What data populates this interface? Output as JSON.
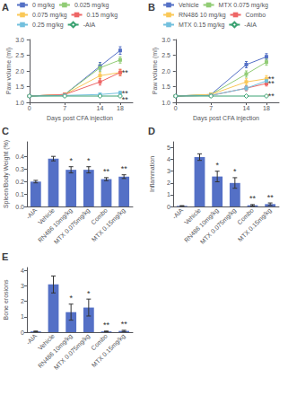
{
  "chart_data": [
    {
      "type": "line",
      "title": "A",
      "xlabel": "Days post CFA injection",
      "ylabel": "Paw volume (ml)",
      "x": [
        0,
        7,
        14,
        18
      ],
      "series": [
        {
          "name": "0 mg/kg",
          "marker": "square",
          "values": [
            1.2,
            1.25,
            2.15,
            2.65
          ],
          "errors": [
            0.03,
            0.04,
            0.12,
            0.12
          ]
        },
        {
          "name": "0.025 mg/kg",
          "marker": "square",
          "values": [
            1.2,
            1.25,
            2.1,
            2.35
          ],
          "errors": [
            0.03,
            0.04,
            0.12,
            0.1
          ]
        },
        {
          "name": "0.075 mg/kg",
          "marker": "square",
          "values": [
            1.2,
            1.25,
            1.85,
            1.95
          ],
          "errors": [
            0.03,
            0.04,
            0.1,
            0.1
          ]
        },
        {
          "name": "0.15 mg/kg",
          "marker": "square",
          "values": [
            1.2,
            1.25,
            1.65,
            1.95
          ],
          "errors": [
            0.03,
            0.04,
            0.1,
            0.1
          ]
        },
        {
          "name": "0.25 mg/kg",
          "marker": "square",
          "values": [
            1.2,
            1.22,
            1.25,
            1.3
          ],
          "errors": [
            0.02,
            0.03,
            0.04,
            0.05
          ]
        },
        {
          "name": "-AIA",
          "marker": "diamond",
          "values": [
            1.2,
            1.2,
            1.2,
            1.2
          ],
          "errors": [
            0.02,
            0.02,
            0.02,
            0.02
          ]
        }
      ],
      "xlim": [
        -0.5,
        20.5
      ],
      "xticks": [
        0,
        7,
        14,
        18
      ],
      "ylim": [
        1.0,
        3.0
      ],
      "yticks": [
        {
          "value": 1.0,
          "label": "1.0"
        },
        1.5,
        {
          "value": 2.0,
          "label": "2.0"
        },
        2.5,
        {
          "value": 3.0,
          "label": "3.0"
        }
      ],
      "annotations": [
        {
          "text": "**",
          "x": 18.3,
          "y": 1.95
        },
        {
          "text": "**",
          "x": 18.3,
          "y": 1.3
        },
        {
          "text": "**",
          "x": 18.3,
          "y": 1.1
        }
      ],
      "legend": "upper left",
      "grid": false
    },
    {
      "type": "line",
      "title": "B",
      "xlabel": "Days post CFA injection",
      "ylabel": "Paw volume (ml)",
      "x": [
        0,
        7,
        14,
        18
      ],
      "series": [
        {
          "name": "Vehicle",
          "marker": "square",
          "values": [
            1.2,
            1.25,
            2.2,
            2.45
          ],
          "errors": [
            0.03,
            0.04,
            0.1,
            0.1
          ]
        },
        {
          "name": "MTX 0.075 mg/kg",
          "marker": "square",
          "values": [
            1.2,
            1.25,
            1.9,
            2.28
          ],
          "errors": [
            0.03,
            0.04,
            0.1,
            0.1
          ]
        },
        {
          "name": "RN486 10 mg/kg",
          "marker": "square",
          "values": [
            1.2,
            1.25,
            1.65,
            1.75
          ],
          "errors": [
            0.03,
            0.04,
            0.1,
            0.1
          ]
        },
        {
          "name": "Combo",
          "marker": "square",
          "values": [
            1.2,
            1.22,
            1.45,
            1.6
          ],
          "errors": [
            0.03,
            0.04,
            0.08,
            0.08
          ]
        },
        {
          "name": "MTX 0.15 mg/kg",
          "marker": "square",
          "values": [
            1.2,
            1.22,
            1.45,
            1.68
          ],
          "errors": [
            0.03,
            0.03,
            0.07,
            0.08
          ]
        },
        {
          "name": "-AIA",
          "marker": "diamond",
          "values": [
            1.2,
            1.2,
            1.2,
            1.2
          ],
          "errors": [
            0.02,
            0.02,
            0.02,
            0.02
          ]
        }
      ],
      "xlim": [
        -0.5,
        20.5
      ],
      "xticks": [
        0,
        7,
        14,
        18
      ],
      "ylim": [
        1.0,
        3.0
      ],
      "yticks": [
        {
          "value": 1.0,
          "label": "1.0"
        },
        1.5,
        {
          "value": 2.0,
          "label": "2.0"
        },
        2.5,
        {
          "value": 3.0,
          "label": "3.0"
        }
      ],
      "annotations": [
        {
          "text": "**",
          "x": 18.3,
          "y": 1.75
        },
        {
          "text": "**",
          "x": 18.3,
          "y": 1.6
        },
        {
          "text": "**",
          "x": 18.3,
          "y": 1.2
        }
      ],
      "legend": "upper left",
      "grid": false
    },
    {
      "type": "bar",
      "title": "C",
      "ylabel": "Spleen/Body Weight (%)",
      "categories": [
        "-AIA",
        "Vehicle",
        "RN486 10mg/kg",
        "MTX 0.075mg/kg",
        "Combo",
        "MTX 0.15mg/kg"
      ],
      "values": [
        0.2,
        0.385,
        0.295,
        0.295,
        0.22,
        0.24
      ],
      "errors": [
        0.01,
        0.018,
        0.025,
        0.025,
        0.012,
        0.015
      ],
      "ylim": [
        0,
        0.52
      ],
      "yticks": [
        {
          "value": 0.0,
          "label": "0.0"
        },
        0.1,
        0.2,
        0.3,
        0.4
      ],
      "annotations": [
        {
          "category": "RN486 10mg/kg",
          "text": "*"
        },
        {
          "category": "MTX 0.075mg/kg",
          "text": "*"
        },
        {
          "category": "Combo",
          "text": "**"
        },
        {
          "category": "MTX 0.15mg/kg",
          "text": "**"
        }
      ],
      "grid": false
    },
    {
      "type": "bar",
      "title": "D",
      "ylabel": "Inflammation",
      "categories": [
        "-AIA",
        "Vehicle",
        "RN486 10mg/kg",
        "MTX 0.075mg/kg",
        "Combo",
        "MTX 0.15mg/kg"
      ],
      "values": [
        0.05,
        4.2,
        2.55,
        2.0,
        0.1,
        0.2
      ],
      "errors": [
        0.02,
        0.28,
        0.45,
        0.45,
        0.06,
        0.1
      ],
      "ylim": [
        0,
        5.5
      ],
      "yticks": [
        0,
        1,
        2,
        3,
        4,
        5
      ],
      "annotations": [
        {
          "category": "RN486 10mg/kg",
          "text": "*"
        },
        {
          "category": "MTX 0.075mg/kg",
          "text": "*"
        },
        {
          "category": "Combo",
          "text": "**"
        },
        {
          "category": "MTX 0.15mg/kg",
          "text": "**"
        }
      ],
      "grid": false
    },
    {
      "type": "bar",
      "title": "E",
      "ylabel": "Bone erosions",
      "categories": [
        "-AIA",
        "Vehicle",
        "RN486 10mg/kg",
        "MTX 0.075mg/kg",
        "Combo",
        "MTX 0.15mg/kg"
      ],
      "values": [
        0.05,
        3.1,
        1.3,
        1.6,
        0.05,
        0.08
      ],
      "errors": [
        0.02,
        0.55,
        0.52,
        0.55,
        0.02,
        0.04
      ],
      "ylim": [
        0,
        4.2
      ],
      "yticks": [
        0,
        1,
        2,
        3,
        4
      ],
      "annotations": [
        {
          "category": "RN486 10mg/kg",
          "text": "*"
        },
        {
          "category": "MTX 0.075mg/kg",
          "text": "*"
        },
        {
          "category": "Combo",
          "text": "**"
        },
        {
          "category": "MTX 0.15mg/kg",
          "text": "**"
        }
      ],
      "grid": false
    }
  ]
}
